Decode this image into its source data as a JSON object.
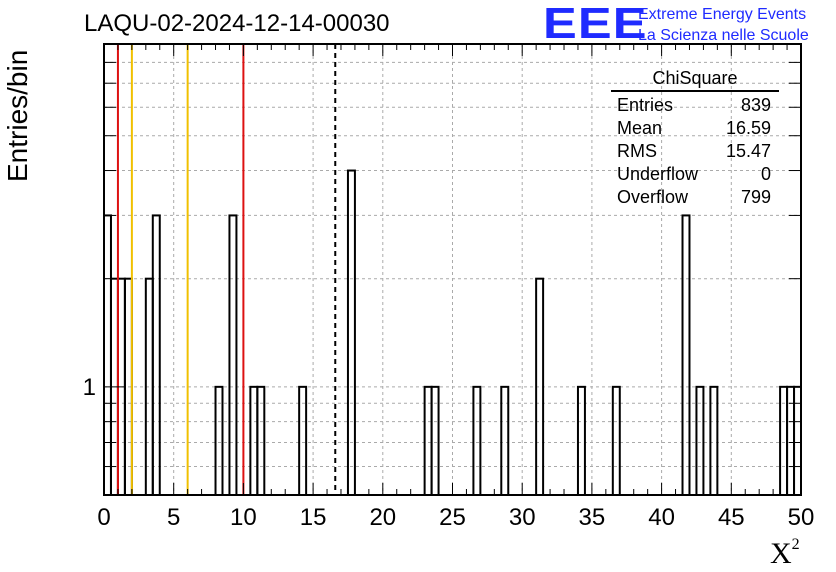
{
  "title": "LAQU-02-2024-12-14-00030",
  "logo": {
    "mark": "EEE",
    "line1": "Extreme Energy Events",
    "line2": "La Scienza nelle Scuole",
    "color": "#1f2bff"
  },
  "stats": {
    "title": "ChiSquare",
    "rows": [
      {
        "label": "Entries",
        "value": "839"
      },
      {
        "label": "Mean",
        "value": "16.59"
      },
      {
        "label": "RMS",
        "value": "15.47"
      },
      {
        "label": "Underflow",
        "value": "0"
      },
      {
        "label": "Overflow",
        "value": "799"
      }
    ]
  },
  "chart_data": {
    "type": "bar",
    "histogram": true,
    "ylabel": "Entries/bin",
    "xlabel_base": "X",
    "xlabel_sup": "2",
    "xlim": [
      0,
      50
    ],
    "ylog": true,
    "ylim": [
      0.5,
      9
    ],
    "grid": true,
    "x_ticks": [
      0,
      5,
      10,
      15,
      20,
      25,
      30,
      35,
      40,
      45,
      50
    ],
    "y_tick_labels": [
      {
        "value": 1,
        "label": "1"
      }
    ],
    "bin_width": 0.5,
    "bins": [
      {
        "x": 0.0,
        "y": 3
      },
      {
        "x": 0.5,
        "y": 2
      },
      {
        "x": 1.0,
        "y": 2
      },
      {
        "x": 1.5,
        "y": 2
      },
      {
        "x": 3.0,
        "y": 2
      },
      {
        "x": 3.5,
        "y": 3
      },
      {
        "x": 8.0,
        "y": 1
      },
      {
        "x": 9.0,
        "y": 3
      },
      {
        "x": 10.5,
        "y": 1
      },
      {
        "x": 11.0,
        "y": 1
      },
      {
        "x": 14.0,
        "y": 1
      },
      {
        "x": 17.5,
        "y": 4
      },
      {
        "x": 23.0,
        "y": 1
      },
      {
        "x": 23.5,
        "y": 1
      },
      {
        "x": 26.5,
        "y": 1
      },
      {
        "x": 28.5,
        "y": 1
      },
      {
        "x": 31.0,
        "y": 2
      },
      {
        "x": 34.0,
        "y": 1
      },
      {
        "x": 36.5,
        "y": 1
      },
      {
        "x": 41.5,
        "y": 3
      },
      {
        "x": 42.5,
        "y": 1
      },
      {
        "x": 43.5,
        "y": 1
      },
      {
        "x": 48.5,
        "y": 1
      },
      {
        "x": 49.0,
        "y": 1
      },
      {
        "x": 49.5,
        "y": 1
      }
    ],
    "vertical_lines": [
      {
        "x": 1,
        "color": "#dd1111",
        "style": "solid"
      },
      {
        "x": 10,
        "color": "#dd1111",
        "style": "solid"
      },
      {
        "x": 2,
        "color": "#f0c000",
        "style": "solid"
      },
      {
        "x": 6,
        "color": "#f0c000",
        "style": "solid"
      },
      {
        "x": 16.59,
        "color": "#000000",
        "style": "dashed"
      }
    ]
  }
}
